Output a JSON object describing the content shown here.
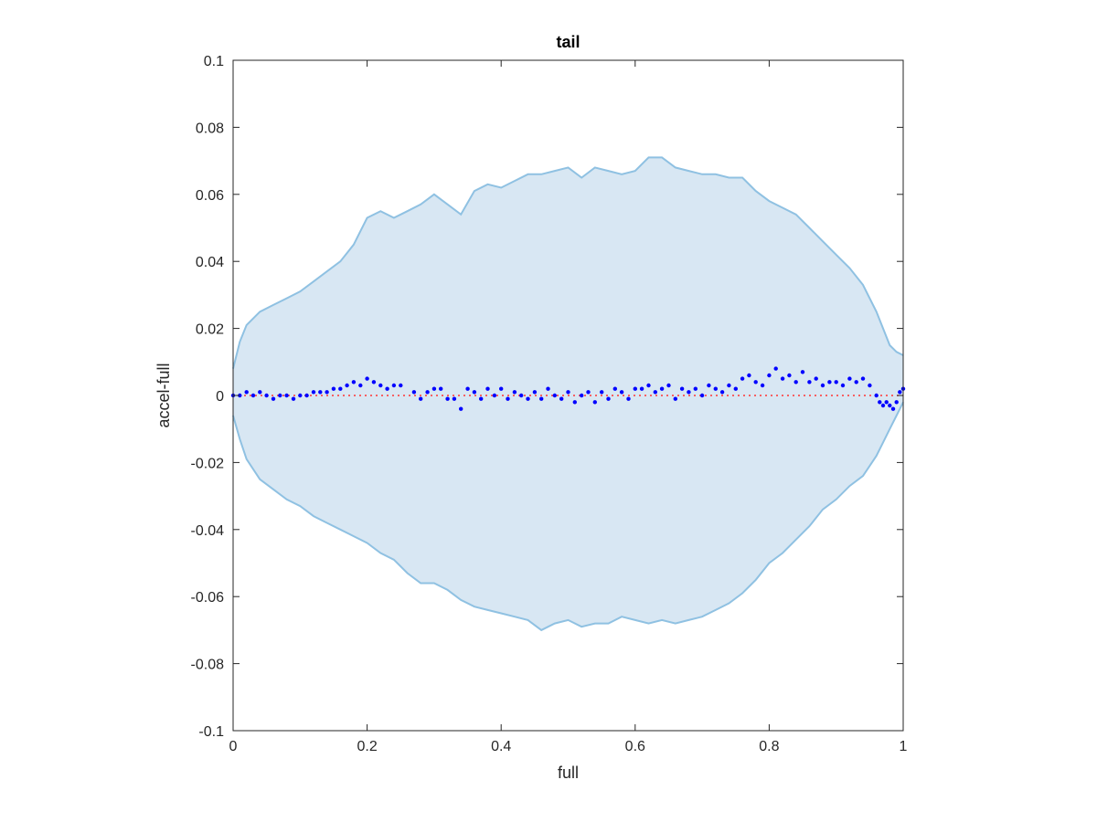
{
  "chart_data": {
    "type": "scatter",
    "title": "tail",
    "xlabel": "full",
    "ylabel": "accel-full",
    "xlim": [
      0,
      1
    ],
    "ylim": [
      -0.1,
      0.1
    ],
    "xticks": [
      0,
      0.2,
      0.4,
      0.6,
      0.8,
      1
    ],
    "xtick_labels": [
      "0",
      "0.2",
      "0.4",
      "0.6",
      "0.8",
      "1"
    ],
    "yticks": [
      0.1,
      0.08,
      0.06,
      0.04,
      0.02,
      0,
      -0.02,
      -0.04,
      -0.06,
      -0.08,
      -0.1
    ],
    "ytick_labels": [
      "0.1",
      "0.08",
      "0.06",
      "0.04",
      "0.02",
      "0",
      "-0.02",
      "-0.04",
      "-0.06",
      "-0.08",
      "-0.1"
    ],
    "grid": false,
    "colors": {
      "band_fill": "#d8e7f3",
      "band_edge": "#8fc1e2",
      "points": "#0000ff",
      "reference_line": "#ff3333",
      "axes": "#262626"
    },
    "band": {
      "x": [
        0,
        0.01,
        0.02,
        0.04,
        0.06,
        0.08,
        0.1,
        0.12,
        0.14,
        0.16,
        0.18,
        0.2,
        0.22,
        0.24,
        0.26,
        0.28,
        0.3,
        0.32,
        0.34,
        0.36,
        0.38,
        0.4,
        0.42,
        0.44,
        0.46,
        0.48,
        0.5,
        0.52,
        0.54,
        0.56,
        0.58,
        0.6,
        0.62,
        0.64,
        0.66,
        0.68,
        0.7,
        0.72,
        0.74,
        0.76,
        0.78,
        0.8,
        0.82,
        0.84,
        0.86,
        0.88,
        0.9,
        0.92,
        0.94,
        0.96,
        0.97,
        0.98,
        0.99,
        1.0
      ],
      "upper": [
        0.008,
        0.016,
        0.021,
        0.025,
        0.027,
        0.029,
        0.031,
        0.034,
        0.037,
        0.04,
        0.045,
        0.053,
        0.055,
        0.053,
        0.055,
        0.057,
        0.06,
        0.057,
        0.054,
        0.061,
        0.063,
        0.062,
        0.064,
        0.066,
        0.066,
        0.067,
        0.068,
        0.065,
        0.068,
        0.067,
        0.066,
        0.067,
        0.071,
        0.071,
        0.068,
        0.067,
        0.066,
        0.066,
        0.065,
        0.065,
        0.061,
        0.058,
        0.056,
        0.054,
        0.05,
        0.046,
        0.042,
        0.038,
        0.033,
        0.025,
        0.02,
        0.015,
        0.013,
        0.012
      ],
      "lower": [
        -0.006,
        -0.013,
        -0.019,
        -0.025,
        -0.028,
        -0.031,
        -0.033,
        -0.036,
        -0.038,
        -0.04,
        -0.042,
        -0.044,
        -0.047,
        -0.049,
        -0.053,
        -0.056,
        -0.056,
        -0.058,
        -0.061,
        -0.063,
        -0.064,
        -0.065,
        -0.066,
        -0.067,
        -0.07,
        -0.068,
        -0.067,
        -0.069,
        -0.068,
        -0.068,
        -0.066,
        -0.067,
        -0.068,
        -0.067,
        -0.068,
        -0.067,
        -0.066,
        -0.064,
        -0.062,
        -0.059,
        -0.055,
        -0.05,
        -0.047,
        -0.043,
        -0.039,
        -0.034,
        -0.031,
        -0.027,
        -0.024,
        -0.018,
        -0.014,
        -0.01,
        -0.006,
        -0.002
      ]
    },
    "series": [
      {
        "x": [
          0.0,
          0.01,
          0.02,
          0.03,
          0.04,
          0.05,
          0.06,
          0.07,
          0.08,
          0.09,
          0.1,
          0.11,
          0.12,
          0.13,
          0.14,
          0.15,
          0.16,
          0.17,
          0.18,
          0.19,
          0.2,
          0.21,
          0.22,
          0.23,
          0.24,
          0.25,
          0.27,
          0.28,
          0.29,
          0.3,
          0.31,
          0.32,
          0.33,
          0.34,
          0.35,
          0.36,
          0.37,
          0.38,
          0.39,
          0.4,
          0.41,
          0.42,
          0.43,
          0.44,
          0.45,
          0.46,
          0.47,
          0.48,
          0.49,
          0.5,
          0.51,
          0.52,
          0.53,
          0.54,
          0.55,
          0.56,
          0.57,
          0.58,
          0.59,
          0.6,
          0.61,
          0.62,
          0.63,
          0.64,
          0.65,
          0.66,
          0.67,
          0.68,
          0.69,
          0.7,
          0.71,
          0.72,
          0.73,
          0.74,
          0.75,
          0.76,
          0.77,
          0.78,
          0.79,
          0.8,
          0.81,
          0.82,
          0.83,
          0.84,
          0.85,
          0.86,
          0.87,
          0.88,
          0.89,
          0.9,
          0.91,
          0.92,
          0.93,
          0.94,
          0.95,
          0.96,
          0.965,
          0.97,
          0.975,
          0.98,
          0.985,
          0.99,
          0.995,
          1.0
        ],
        "y": [
          0.0,
          0.0,
          0.001,
          0.0,
          0.001,
          0.0,
          -0.001,
          0.0,
          0.0,
          -0.001,
          0.0,
          0.0,
          0.001,
          0.001,
          0.001,
          0.002,
          0.002,
          0.003,
          0.004,
          0.003,
          0.005,
          0.004,
          0.003,
          0.002,
          0.003,
          0.003,
          0.001,
          -0.001,
          0.001,
          0.002,
          0.002,
          -0.001,
          -0.001,
          -0.004,
          0.002,
          0.001,
          -0.001,
          0.002,
          0.0,
          0.002,
          -0.001,
          0.001,
          0.0,
          -0.001,
          0.001,
          -0.001,
          0.002,
          0.0,
          -0.001,
          0.001,
          -0.002,
          0.0,
          0.001,
          -0.002,
          0.001,
          -0.001,
          0.002,
          0.001,
          -0.001,
          0.002,
          0.002,
          0.003,
          0.001,
          0.002,
          0.003,
          -0.001,
          0.002,
          0.001,
          0.002,
          0.0,
          0.003,
          0.002,
          0.001,
          0.003,
          0.002,
          0.005,
          0.006,
          0.004,
          0.003,
          0.006,
          0.008,
          0.005,
          0.006,
          0.004,
          0.007,
          0.004,
          0.005,
          0.003,
          0.004,
          0.004,
          0.003,
          0.005,
          0.004,
          0.005,
          0.003,
          0.0,
          -0.002,
          -0.003,
          -0.002,
          -0.003,
          -0.004,
          -0.002,
          0.001,
          0.002
        ]
      }
    ],
    "reference_line": {
      "y": 0,
      "style": "dotted"
    }
  }
}
